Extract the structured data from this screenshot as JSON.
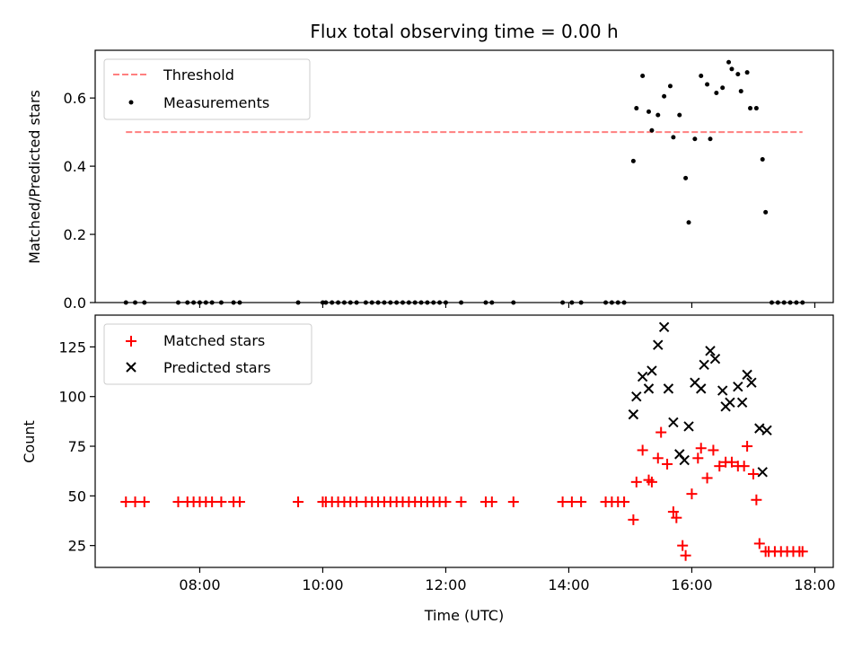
{
  "chart_data": [
    {
      "type": "scatter",
      "title": "Flux total observing time = 0.00 h",
      "xlabel": "",
      "ylabel": "Matched/Predicted stars",
      "xlim_hours": [
        6.3,
        18.3
      ],
      "ylim": [
        0.0,
        0.74
      ],
      "yticks": [
        {
          "value": 0.0,
          "label": "0.0"
        },
        {
          "value": 0.2,
          "label": "0.2"
        },
        {
          "value": 0.4,
          "label": "0.4"
        },
        {
          "value": 0.6,
          "label": "0.6"
        }
      ],
      "legend": {
        "placement": "top-left",
        "entries": [
          "Threshold",
          "Measurements"
        ]
      },
      "threshold": {
        "name": "Threshold",
        "value": 0.5,
        "x_start": 6.8,
        "x_end": 17.8,
        "color": "#ff7f7f",
        "style": "dashed"
      },
      "series": [
        {
          "name": "Measurements",
          "color": "#000000",
          "marker": "dot",
          "x": [
            6.8,
            6.95,
            7.1,
            7.65,
            7.8,
            7.9,
            8.0,
            8.1,
            8.2,
            8.35,
            8.55,
            8.65,
            9.6,
            10.0,
            10.05,
            10.15,
            10.25,
            10.35,
            10.45,
            10.55,
            10.7,
            10.8,
            10.9,
            11.0,
            11.1,
            11.2,
            11.3,
            11.4,
            11.5,
            11.6,
            11.7,
            11.8,
            11.9,
            12.0,
            12.25,
            12.65,
            12.75,
            13.1,
            13.9,
            14.05,
            14.2,
            14.6,
            14.7,
            14.8,
            14.9,
            15.05,
            15.1,
            15.2,
            15.3,
            15.35,
            15.45,
            15.55,
            15.65,
            15.7,
            15.8,
            15.9,
            15.95,
            16.05,
            16.15,
            16.25,
            16.3,
            16.4,
            16.5,
            16.6,
            16.65,
            16.75,
            16.8,
            16.9,
            16.95,
            17.05,
            17.15,
            17.2,
            17.3,
            17.4,
            17.5,
            17.6,
            17.7,
            17.8
          ],
          "y": [
            0,
            0,
            0,
            0,
            0,
            0,
            0,
            0,
            0,
            0,
            0,
            0,
            0,
            0,
            0,
            0,
            0,
            0,
            0,
            0,
            0,
            0,
            0,
            0,
            0,
            0,
            0,
            0,
            0,
            0,
            0,
            0,
            0,
            0,
            0,
            0,
            0,
            0,
            0,
            0,
            0,
            0,
            0,
            0,
            0,
            0.415,
            0.57,
            0.665,
            0.56,
            0.505,
            0.55,
            0.605,
            0.635,
            0.485,
            0.55,
            0.365,
            0.235,
            0.48,
            0.665,
            0.64,
            0.48,
            0.615,
            0.63,
            0.705,
            0.685,
            0.67,
            0.62,
            0.675,
            0.57,
            0.57,
            0.42,
            0.265,
            0,
            0,
            0,
            0,
            0,
            0
          ]
        }
      ]
    },
    {
      "type": "scatter",
      "title": "",
      "xlabel": "Time (UTC)",
      "ylabel": "Count",
      "xlim_hours": [
        6.3,
        18.3
      ],
      "ylim": [
        14,
        141
      ],
      "xticks": [
        {
          "value": 8,
          "label": "08:00"
        },
        {
          "value": 10,
          "label": "10:00"
        },
        {
          "value": 12,
          "label": "12:00"
        },
        {
          "value": 14,
          "label": "14:00"
        },
        {
          "value": 16,
          "label": "16:00"
        },
        {
          "value": 18,
          "label": "18:00"
        }
      ],
      "yticks": [
        {
          "value": 25,
          "label": "25"
        },
        {
          "value": 50,
          "label": "50"
        },
        {
          "value": 75,
          "label": "75"
        },
        {
          "value": 100,
          "label": "100"
        },
        {
          "value": 125,
          "label": "125"
        }
      ],
      "legend": {
        "placement": "top-left",
        "entries": [
          "Matched stars",
          "Predicted stars"
        ]
      },
      "series": [
        {
          "name": "Matched stars",
          "color": "#ff0000",
          "marker": "plus",
          "x": [
            6.8,
            6.95,
            7.1,
            7.65,
            7.8,
            7.9,
            8.0,
            8.1,
            8.2,
            8.35,
            8.55,
            8.65,
            9.6,
            10.0,
            10.05,
            10.15,
            10.25,
            10.35,
            10.45,
            10.55,
            10.7,
            10.8,
            10.9,
            11.0,
            11.1,
            11.2,
            11.3,
            11.4,
            11.5,
            11.6,
            11.7,
            11.8,
            11.9,
            12.0,
            12.25,
            12.65,
            12.75,
            13.1,
            13.9,
            14.05,
            14.2,
            14.6,
            14.7,
            14.8,
            14.9,
            15.05,
            15.1,
            15.2,
            15.3,
            15.35,
            15.45,
            15.5,
            15.6,
            15.7,
            15.75,
            15.85,
            15.9,
            16.0,
            16.1,
            16.15,
            16.25,
            16.35,
            16.45,
            16.55,
            16.65,
            16.75,
            16.85,
            16.9,
            17.0,
            17.05,
            17.1,
            17.2,
            17.25,
            17.35,
            17.45,
            17.55,
            17.65,
            17.75,
            17.8
          ],
          "y": [
            47,
            47,
            47,
            47,
            47,
            47,
            47,
            47,
            47,
            47,
            47,
            47,
            47,
            47,
            47,
            47,
            47,
            47,
            47,
            47,
            47,
            47,
            47,
            47,
            47,
            47,
            47,
            47,
            47,
            47,
            47,
            47,
            47,
            47,
            47,
            47,
            47,
            47,
            47,
            47,
            47,
            47,
            47,
            47,
            47,
            38,
            57,
            73,
            58,
            57,
            69,
            82,
            66,
            42,
            39,
            25,
            20,
            51,
            69,
            74,
            59,
            73,
            65,
            67,
            67,
            65,
            65,
            75,
            61,
            48,
            26,
            22,
            22,
            22,
            22,
            22,
            22,
            22,
            22
          ]
        },
        {
          "name": "Predicted stars",
          "color": "#000000",
          "marker": "x",
          "x": [
            15.05,
            15.1,
            15.2,
            15.3,
            15.35,
            15.45,
            15.55,
            15.62,
            15.7,
            15.8,
            15.88,
            15.95,
            16.05,
            16.15,
            16.2,
            16.3,
            16.38,
            16.5,
            16.55,
            16.62,
            16.75,
            16.82,
            16.9,
            16.97,
            17.1,
            17.15,
            17.22
          ],
          "y": [
            91,
            100,
            110,
            104,
            113,
            126,
            135,
            104,
            87,
            71,
            68,
            85,
            107,
            104,
            116,
            123,
            119,
            103,
            95,
            97,
            105,
            97,
            111,
            107,
            84,
            62,
            83
          ]
        }
      ]
    }
  ]
}
